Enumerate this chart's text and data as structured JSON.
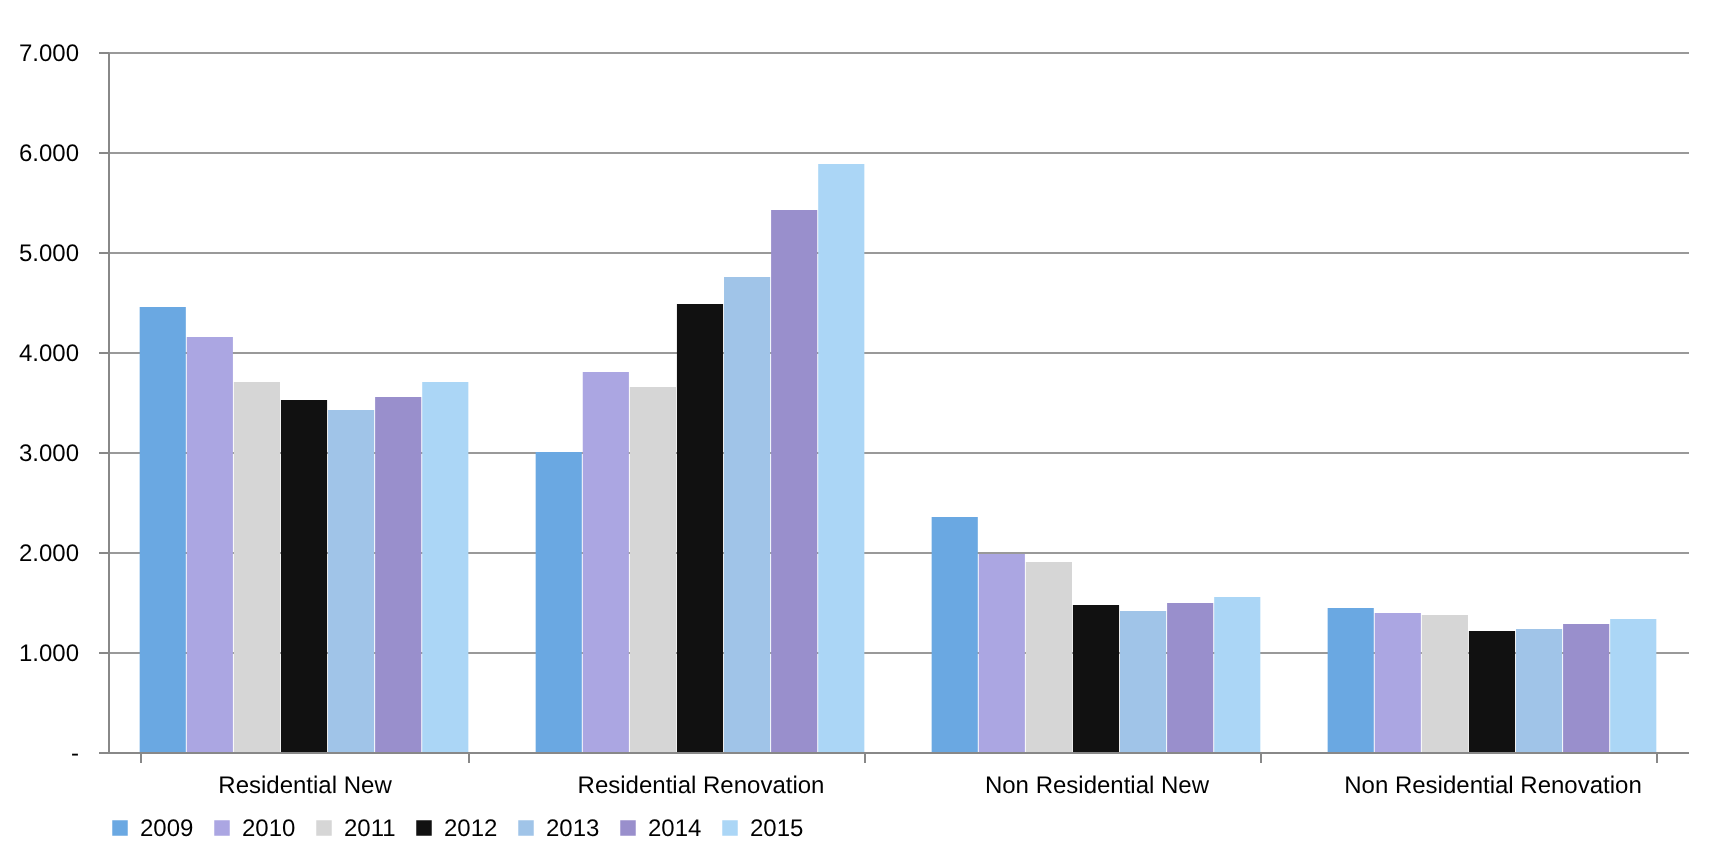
{
  "chart_data": {
    "type": "bar",
    "categories": [
      "Residential New",
      "Residential Renovation",
      "Non Residential New",
      "Non Residential Renovation"
    ],
    "series": [
      {
        "name": "2009",
        "color": "#6aa8e2",
        "values": [
          4450,
          3000,
          2350,
          1440
        ]
      },
      {
        "name": "2010",
        "color": "#aba6e2",
        "values": [
          4150,
          3800,
          1980,
          1390
        ]
      },
      {
        "name": "2011",
        "color": "#d6d6d6",
        "values": [
          3700,
          3650,
          1900,
          1370
        ]
      },
      {
        "name": "2012",
        "color": "#111111",
        "values": [
          3520,
          4480,
          1470,
          1210
        ]
      },
      {
        "name": "2013",
        "color": "#a0c4e8",
        "values": [
          3420,
          4750,
          1410,
          1230
        ]
      },
      {
        "name": "2014",
        "color": "#998fcc",
        "values": [
          3550,
          5420,
          1490,
          1280
        ]
      },
      {
        "name": "2015",
        "color": "#abd6f6",
        "values": [
          3700,
          5880,
          1550,
          1330
        ]
      }
    ],
    "ylim": [
      0,
      7000
    ],
    "yticks": [
      {
        "value": 0,
        "label": "-"
      },
      {
        "value": 1000,
        "label": "1.000"
      },
      {
        "value": 2000,
        "label": "2.000"
      },
      {
        "value": 3000,
        "label": "3.000"
      },
      {
        "value": 4000,
        "label": "4.000"
      },
      {
        "value": 5000,
        "label": "5.000"
      },
      {
        "value": 6000,
        "label": "6.000"
      },
      {
        "value": 7000,
        "label": "7.000"
      }
    ],
    "grid": "y",
    "legend": "bottom"
  }
}
